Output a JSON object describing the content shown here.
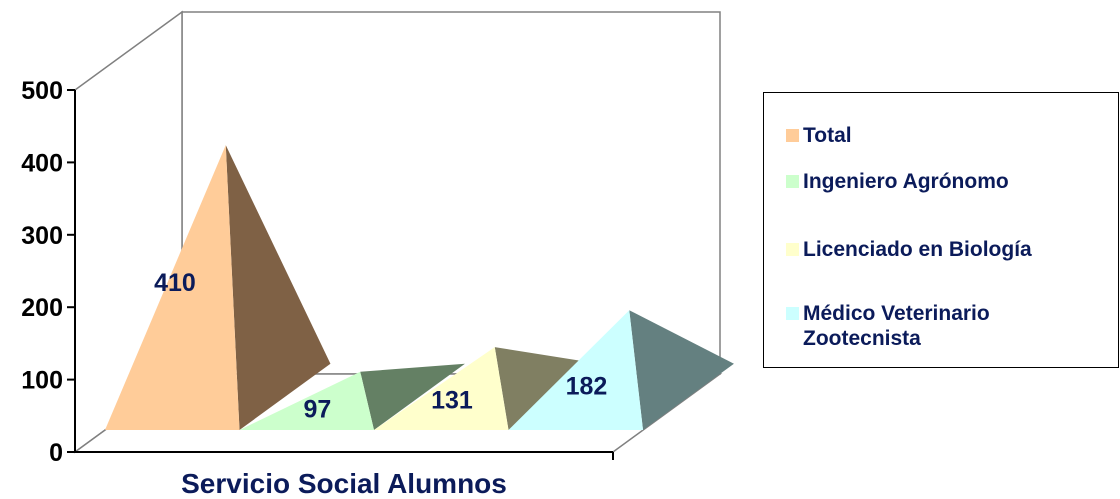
{
  "chart_data": {
    "type": "bar",
    "shape": "pyramid",
    "three_d": true,
    "categories": [
      "Servicio Social Alumnos"
    ],
    "xlabel": "Servicio Social Alumnos",
    "ylim": [
      0,
      500
    ],
    "y_ticks": [
      0,
      100,
      200,
      300,
      400,
      500
    ],
    "grid": false,
    "legend_position": "right",
    "series": [
      {
        "name": "Total",
        "values": [
          410
        ],
        "label": "410",
        "color": "#ffcc99",
        "shade": "#7f6145"
      },
      {
        "name": "Ingeniero Agrónomo",
        "values": [
          97
        ],
        "label": "97",
        "color": "#ccffcc",
        "shade": "#648064"
      },
      {
        "name": "Licenciado en Biología",
        "values": [
          131
        ],
        "label": "131",
        "color": "#ffffcc",
        "shade": "#807f62"
      },
      {
        "name": "Médico Veterinario Zootecnista",
        "values": [
          182
        ],
        "label": "182",
        "color": "#ccffff",
        "shade": "#648080"
      }
    ]
  }
}
